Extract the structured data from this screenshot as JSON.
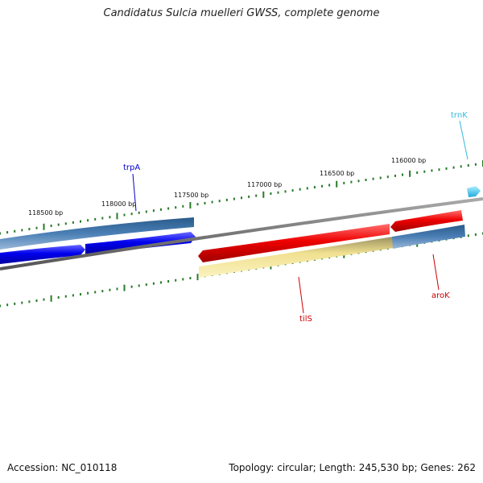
{
  "title": "Candidatus Sulcia muelleri GWSS, complete genome",
  "footer": {
    "accession": "Accession: NC_010118",
    "summary": "Topology: circular; Length: 245,530 bp; Genes: 262"
  },
  "chart_data": {
    "type": "genome-map",
    "ticks": [
      {
        "bp": 118500,
        "label": "118500 bp"
      },
      {
        "bp": 118000,
        "label": "118000 bp"
      },
      {
        "bp": 117500,
        "label": "117500 bp"
      },
      {
        "bp": 117000,
        "label": "117000 bp"
      },
      {
        "bp": 116500,
        "label": "116500 bp"
      },
      {
        "bp": 116000,
        "label": "116000 bp"
      }
    ],
    "genes": [
      {
        "name": "trpA",
        "color": "#0000cc"
      },
      {
        "name": "tilS",
        "color": "#cc0000"
      },
      {
        "name": "aroK",
        "color": "#cc0000"
      },
      {
        "name": "trnK",
        "color": "#33bbdd"
      }
    ],
    "colors": {
      "cds_forward": "#0000ee",
      "cds_reverse": "#ee0000",
      "trna": "#44ccee",
      "gene_bar": "#4a7fb5",
      "pseudo_bar": "#f0e090",
      "backbone": "#888888",
      "ticks": "#2a7a2a"
    }
  }
}
